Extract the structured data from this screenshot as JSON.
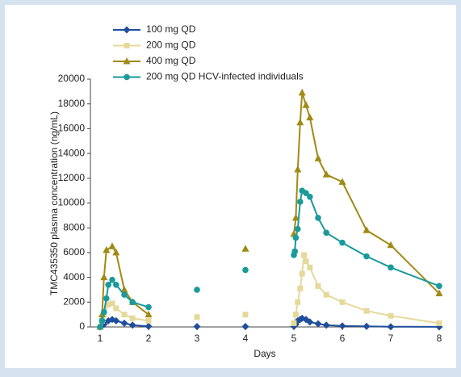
{
  "chart_data": {
    "type": "line",
    "y_label": "TMC435350 plasma concentration (ng/mL)",
    "x_label": "Days",
    "xlim": [
      0.8,
      8
    ],
    "xticks": [
      1,
      2,
      3,
      4,
      5,
      6,
      7,
      8
    ],
    "ylim": [
      0,
      20000
    ],
    "yticks": [
      0,
      2000,
      4000,
      6000,
      8000,
      10000,
      12000,
      14000,
      16000,
      18000,
      20000
    ],
    "grid": false,
    "legend": "top-left",
    "series": [
      {
        "name": "100 mg QD",
        "color": "#1f4e9c",
        "marker": "diamond",
        "x": [
          1,
          1.08,
          1.17,
          1.25,
          1.33,
          1.5,
          1.67,
          2,
          null,
          3,
          null,
          4,
          null,
          5,
          5.04,
          5.08,
          5.13,
          5.17,
          5.25,
          5.33,
          5.5,
          5.67,
          6,
          6.5,
          7,
          8
        ],
        "values": [
          0,
          200,
          500,
          600,
          500,
          300,
          150,
          50,
          null,
          30,
          null,
          30,
          null,
          50,
          200,
          500,
          600,
          700,
          600,
          400,
          250,
          150,
          80,
          50,
          20,
          10
        ]
      },
      {
        "name": "200 mg QD",
        "color": "#e6d99a",
        "marker": "square",
        "x": [
          1,
          1.04,
          1.08,
          1.17,
          1.25,
          1.33,
          1.5,
          1.67,
          2,
          null,
          3,
          null,
          4,
          null,
          5,
          5.04,
          5.08,
          5.13,
          5.17,
          5.21,
          5.25,
          5.33,
          5.5,
          5.67,
          6,
          6.5,
          7,
          8
        ],
        "values": [
          0,
          500,
          1000,
          1800,
          1900,
          1500,
          1000,
          700,
          500,
          null,
          800,
          null,
          1000,
          null,
          300,
          1000,
          2000,
          3100,
          4300,
          5800,
          5300,
          4800,
          3300,
          2600,
          2000,
          1300,
          900,
          300
        ]
      },
      {
        "name": "400 mg QD",
        "color": "#a08a14",
        "marker": "triangle",
        "x": [
          1,
          1.04,
          1.08,
          1.13,
          1.25,
          1.33,
          1.5,
          1.67,
          2,
          null,
          4,
          null,
          5,
          5.04,
          5.08,
          5.13,
          5.17,
          5.25,
          5.33,
          5.5,
          5.67,
          6,
          6.5,
          7,
          8
        ],
        "values": [
          0,
          1000,
          4000,
          6200,
          6500,
          6000,
          3000,
          2000,
          1000,
          null,
          6300,
          null,
          7500,
          8800,
          12700,
          16500,
          18900,
          17900,
          16900,
          13600,
          12300,
          11700,
          7800,
          6600,
          2700
        ]
      },
      {
        "name": "200 mg QD HCV-infected individuals",
        "color": "#1a9a9a",
        "marker": "circle",
        "x": [
          1,
          1.04,
          1.08,
          1.13,
          1.17,
          1.25,
          1.33,
          1.5,
          1.67,
          2,
          null,
          3,
          null,
          4,
          null,
          5,
          5.02,
          5.04,
          5.08,
          5.13,
          5.17,
          5.25,
          5.33,
          5.5,
          5.67,
          6,
          6.5,
          7,
          8
        ],
        "values": [
          0,
          500,
          1200,
          2300,
          3400,
          3800,
          3400,
          2600,
          2000,
          1600,
          null,
          3000,
          null,
          4600,
          null,
          5800,
          6100,
          7200,
          7900,
          10100,
          11000,
          10800,
          10500,
          8800,
          7600,
          6800,
          5700,
          4800,
          3300
        ]
      }
    ]
  }
}
